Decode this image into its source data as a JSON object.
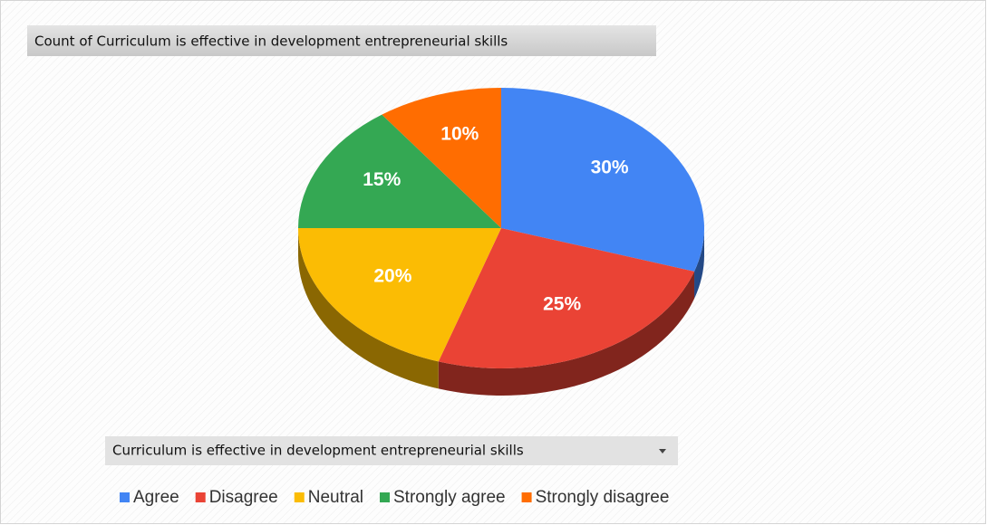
{
  "chart_data": {
    "type": "pie3d",
    "title": "Count of Curriculum is effective in development entrepreneurial skills",
    "field_button": "Curriculum is effective in development entrepreneurial skills",
    "categories": [
      "Agree",
      "Disagree",
      "Neutral",
      "Strongly agree",
      "Strongly disagree"
    ],
    "values": [
      30,
      25,
      20,
      15,
      10
    ],
    "value_labels": [
      "30%",
      "25%",
      "20%",
      "15%",
      "10%"
    ],
    "colors": [
      "#4285f4",
      "#ea4335",
      "#fbbc04",
      "#34a853",
      "#ff6d01"
    ],
    "legend": "bottom"
  }
}
